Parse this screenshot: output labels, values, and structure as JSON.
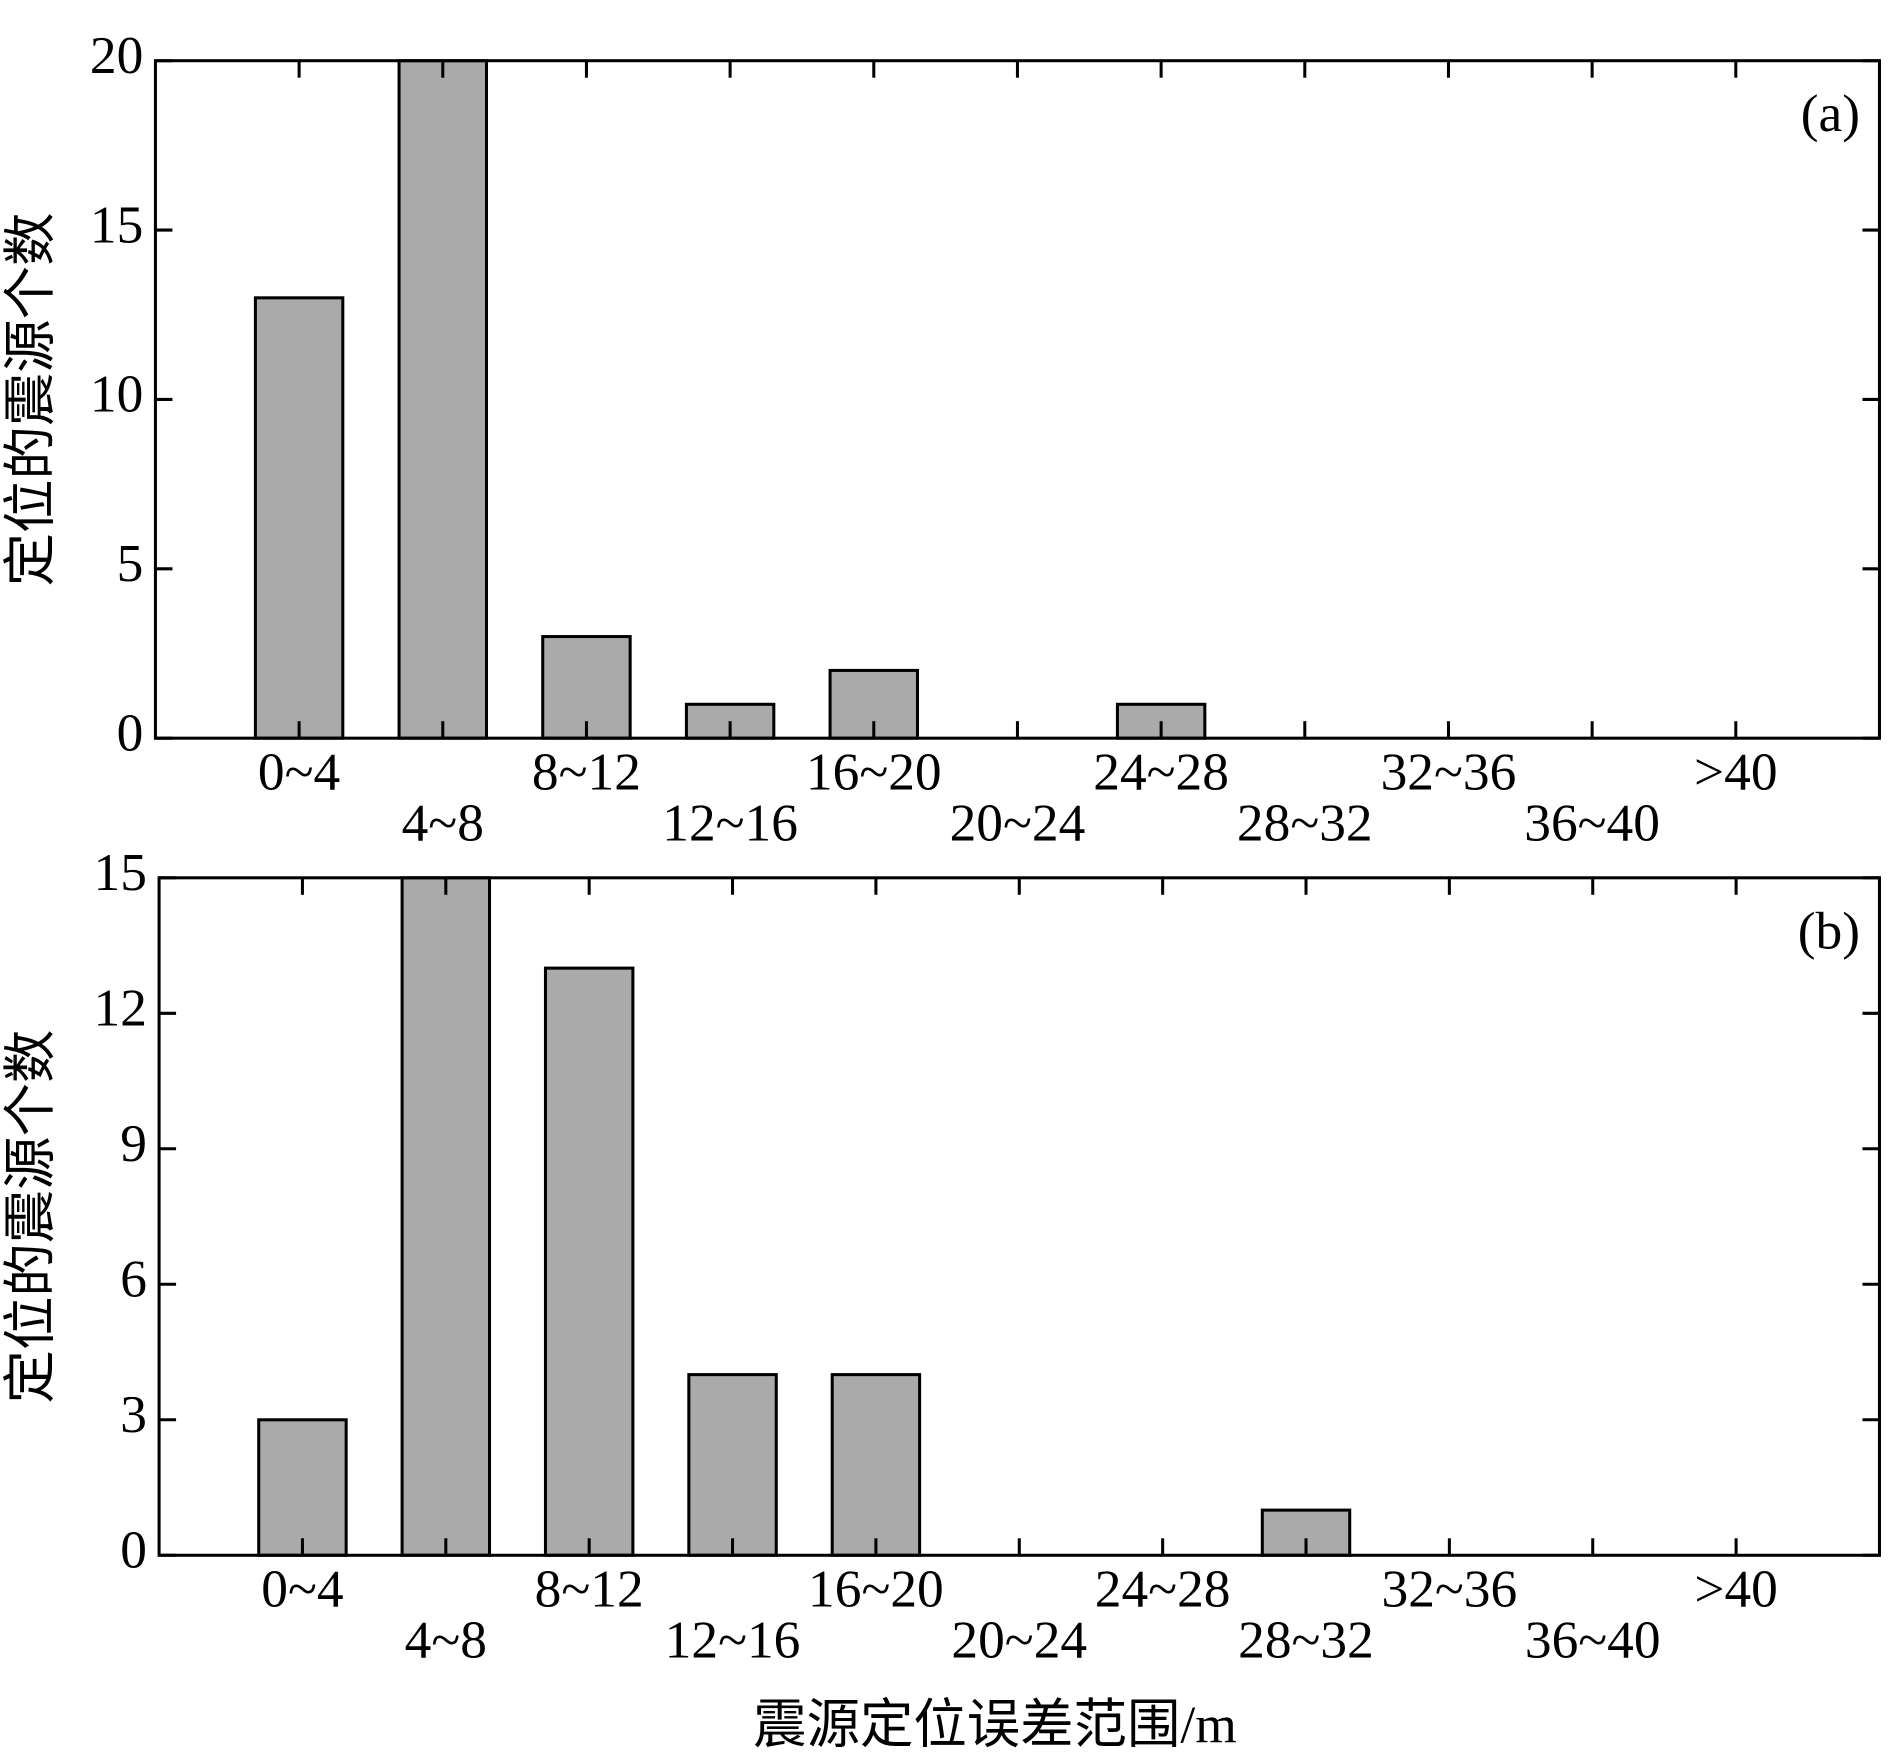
{
  "chart_data": [
    {
      "type": "bar",
      "panel_label": "(a)",
      "y_label": "定位的震源个数",
      "categories": [
        "0~4",
        "4~8",
        "8~12",
        "12~16",
        "16~20",
        "20~24",
        "24~28",
        "28~32",
        "32~36",
        "36~40",
        ">40"
      ],
      "values": [
        13,
        20,
        3,
        1,
        2,
        0,
        1,
        0,
        0,
        0,
        0
      ],
      "color": "#aaaaaa",
      "ylim": [
        0,
        20
      ],
      "yticks": [
        0,
        5,
        10,
        15,
        20
      ]
    },
    {
      "type": "bar",
      "panel_label": "(b)",
      "y_label": "定位的震源个数",
      "x_label": "震源定位误差范围/m",
      "categories": [
        "0~4",
        "4~8",
        "8~12",
        "12~16",
        "16~20",
        "20~24",
        "24~28",
        "28~32",
        "32~36",
        "36~40",
        ">40"
      ],
      "values": [
        3,
        15,
        13,
        4,
        4,
        0,
        0,
        1,
        0,
        0,
        0
      ],
      "color": "#aaaaaa",
      "ylim": [
        0,
        15
      ],
      "yticks": [
        0,
        3,
        6,
        9,
        12,
        15
      ]
    }
  ]
}
